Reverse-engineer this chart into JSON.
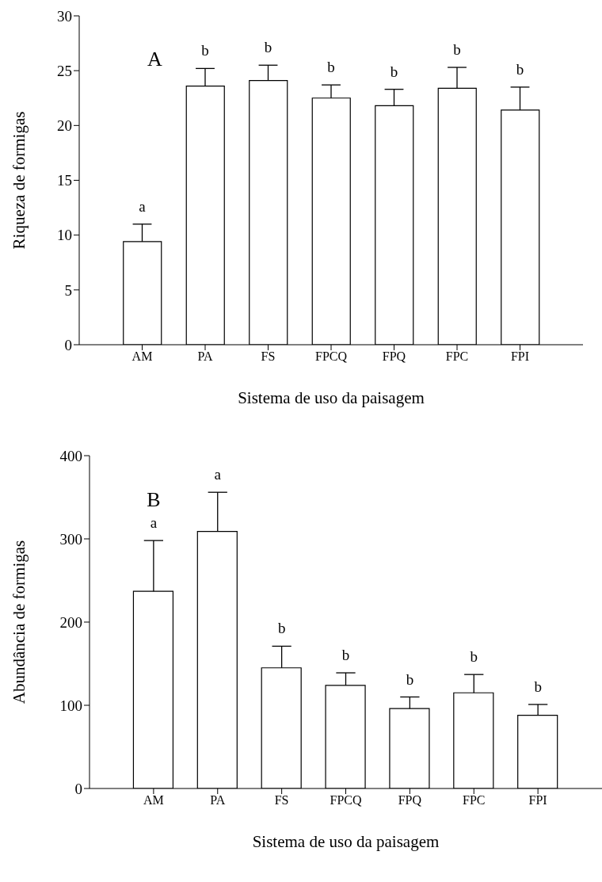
{
  "chart_data": [
    {
      "type": "bar",
      "xlabel": "Sistema de uso da paisagem",
      "ylabel": "Riqueza de formigas",
      "categories": [
        "AM",
        "PA",
        "FS",
        "FPCQ",
        "FPQ",
        "FPC",
        "FPI"
      ],
      "values": [
        9.4,
        23.6,
        24.1,
        22.5,
        21.8,
        23.4,
        21.4
      ],
      "errors": [
        1.6,
        1.6,
        1.4,
        1.2,
        1.5,
        1.9,
        2.1
      ],
      "color": "#ffffff",
      "ylim": [
        0,
        30
      ],
      "yticks": [
        0,
        5,
        10,
        15,
        20,
        25,
        30
      ],
      "grid": false,
      "legend": false,
      "annotations": [
        "A",
        {
          "text": "a",
          "x": "AM",
          "y": 11
        },
        {
          "text": "b",
          "x": "PA",
          "y": 25.2
        },
        {
          "text": "b",
          "x": "FS",
          "y": 25.5
        },
        {
          "text": "b",
          "x": "FPCQ",
          "y": 23.7
        },
        {
          "text": "b",
          "x": "FPQ",
          "y": 23.3
        },
        {
          "text": "b",
          "x": "FPC",
          "y": 25.3
        },
        {
          "text": "b",
          "x": "FPI",
          "y": 23.5
        }
      ]
    },
    {
      "type": "bar",
      "xlabel": "Sistema de uso da paisagem",
      "ylabel": "Abundância de formigas",
      "categories": [
        "AM",
        "PA",
        "FS",
        "FPCQ",
        "FPQ",
        "FPC",
        "FPI"
      ],
      "values": [
        237,
        309,
        145,
        124,
        96,
        115,
        88
      ],
      "errors": [
        61,
        47,
        26,
        15,
        14,
        22,
        13
      ],
      "color": "#ffffff",
      "ylim": [
        0,
        400
      ],
      "yticks": [
        0,
        100,
        200,
        300,
        400
      ],
      "grid": false,
      "legend": false,
      "annotations": [
        "B",
        {
          "text": "a",
          "x": "AM",
          "y": 298
        },
        {
          "text": "a",
          "x": "PA",
          "y": 356
        },
        {
          "text": "b",
          "x": "FS",
          "y": 171
        },
        {
          "text": "b",
          "x": "FPCQ",
          "y": 139
        },
        {
          "text": "b",
          "x": "FPQ",
          "y": 110
        },
        {
          "text": "b",
          "x": "FPC",
          "y": 137
        },
        {
          "text": "b",
          "x": "FPI",
          "y": 101
        }
      ]
    }
  ]
}
